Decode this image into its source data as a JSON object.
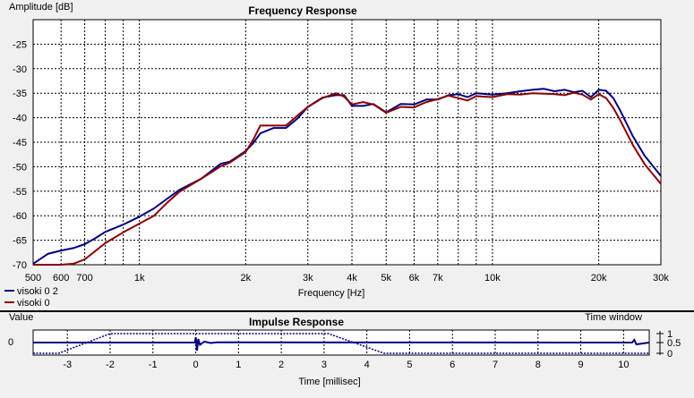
{
  "chart_data": [
    {
      "type": "line",
      "title": "Frequency Response",
      "xlabel": "Frequency [Hz]",
      "ylabel": "Amplitude [dB]",
      "xscale": "log",
      "xlim": [
        500,
        30000
      ],
      "ylim": [
        -70,
        -20
      ],
      "grid": true,
      "legend_position": "bottom-left",
      "x_ticks": [
        {
          "v": 500,
          "l": "500"
        },
        {
          "v": 600,
          "l": "600"
        },
        {
          "v": 700,
          "l": "700"
        },
        {
          "v": 1000,
          "l": "1k"
        },
        {
          "v": 2000,
          "l": "2k"
        },
        {
          "v": 3000,
          "l": "3k"
        },
        {
          "v": 4000,
          "l": "4k"
        },
        {
          "v": 5000,
          "l": "5k"
        },
        {
          "v": 6000,
          "l": "6k"
        },
        {
          "v": 7000,
          "l": "7k"
        },
        {
          "v": 10000,
          "l": "10k"
        },
        {
          "v": 20000,
          "l": "20k"
        },
        {
          "v": 30000,
          "l": "30k"
        }
      ],
      "x_minor": [
        800,
        900,
        8000,
        9000
      ],
      "y_ticks": [
        {
          "v": -25,
          "l": "-25"
        },
        {
          "v": -30,
          "l": "-30"
        },
        {
          "v": -35,
          "l": "-35"
        },
        {
          "v": -40,
          "l": "-40"
        },
        {
          "v": -45,
          "l": "-45"
        },
        {
          "v": -50,
          "l": "-50"
        },
        {
          "v": -55,
          "l": "-55"
        },
        {
          "v": -60,
          "l": "-60"
        },
        {
          "v": -65,
          "l": "-65"
        },
        {
          "v": -70,
          "l": "-70"
        }
      ],
      "series": [
        {
          "name": "visoki 0 2",
          "color": "#000080",
          "x": [
            500,
            550,
            600,
            650,
            700,
            750,
            800,
            900,
            1000,
            1100,
            1200,
            1300,
            1500,
            1700,
            1800,
            2000,
            2100,
            2200,
            2400,
            2600,
            2800,
            3000,
            3300,
            3600,
            3800,
            4000,
            4300,
            4600,
            5000,
            5500,
            6000,
            6500,
            7000,
            7500,
            8000,
            8500,
            9000,
            10000,
            11000,
            12000,
            13000,
            14000,
            15000,
            16000,
            17000,
            18000,
            19000,
            20000,
            21000,
            22000,
            23000,
            25000,
            27000,
            30000
          ],
          "y": [
            -69.8,
            -67.8,
            -67.1,
            -66.6,
            -65.8,
            -64.6,
            -63.3,
            -61.8,
            -60.2,
            -58.5,
            -56.5,
            -54.7,
            -52.4,
            -49.4,
            -49.0,
            -46.8,
            -45.2,
            -43.2,
            -42.1,
            -42.1,
            -40.2,
            -37.8,
            -35.9,
            -35.4,
            -35.4,
            -37.6,
            -37.6,
            -37.2,
            -38.9,
            -37.2,
            -37.3,
            -36.3,
            -36.3,
            -35.4,
            -35.2,
            -35.8,
            -35.0,
            -35.3,
            -35.0,
            -34.6,
            -34.3,
            -34.1,
            -34.6,
            -34.3,
            -34.8,
            -34.5,
            -35.8,
            -34.3,
            -34.5,
            -36.0,
            -38.5,
            -43.8,
            -47.8,
            -51.9
          ]
        },
        {
          "name": "visoki 0",
          "color": "#8b0000",
          "x": [
            500,
            600,
            650,
            700,
            750,
            800,
            900,
            1000,
            1100,
            1200,
            1300,
            1500,
            1700,
            1800,
            2000,
            2100,
            2200,
            2400,
            2600,
            2800,
            3000,
            3300,
            3600,
            3800,
            4000,
            4300,
            4600,
            5000,
            5500,
            6000,
            6500,
            7000,
            7500,
            8000,
            8500,
            9000,
            10000,
            11000,
            12000,
            13000,
            14000,
            15000,
            16000,
            17000,
            18000,
            19000,
            20000,
            21000,
            22000,
            23000,
            25000,
            27000,
            30000
          ],
          "y": [
            -70.0,
            -70.0,
            -69.8,
            -68.9,
            -67.2,
            -65.6,
            -63.4,
            -61.6,
            -60.0,
            -57.3,
            -55.1,
            -52.4,
            -49.9,
            -49.2,
            -47.0,
            -44.5,
            -41.6,
            -41.6,
            -41.6,
            -39.6,
            -37.8,
            -36.0,
            -35.0,
            -35.7,
            -37.3,
            -36.8,
            -37.3,
            -39.0,
            -37.8,
            -37.9,
            -36.8,
            -36.2,
            -35.5,
            -36.0,
            -36.5,
            -35.6,
            -35.8,
            -35.2,
            -35.3,
            -35.0,
            -35.1,
            -35.2,
            -35.4,
            -34.9,
            -35.3,
            -36.3,
            -35.2,
            -36.0,
            -38.0,
            -40.5,
            -45.6,
            -49.5,
            -53.5
          ]
        }
      ]
    },
    {
      "type": "line",
      "title": "Impulse Response",
      "xlabel": "Time [millisec]",
      "ylabel": "Value",
      "xlim": [
        -3.8,
        10.6
      ],
      "x_ticks": [
        -3,
        -2,
        -1,
        0,
        1,
        2,
        3,
        4,
        5,
        6,
        7,
        8,
        9,
        10
      ],
      "left_tick_label": "0",
      "right_axis_label": "Time window",
      "right_ticks": [
        "1",
        "0.5",
        "0"
      ],
      "series": [
        {
          "name": "time window",
          "style": "dotted",
          "color": "#000080",
          "x": [
            -3.8,
            -3.2,
            -2.0,
            3.1,
            4.4,
            10.6
          ],
          "y": [
            0,
            0,
            1,
            1,
            0,
            0
          ]
        },
        {
          "name": "impulse",
          "color": "#000080",
          "x": [
            -3.8,
            -0.02,
            0.0,
            0.03,
            0.06,
            0.1,
            0.2,
            0.35,
            0.5,
            10.2,
            10.25,
            10.3,
            10.6
          ],
          "y": [
            0,
            0,
            0.6,
            -0.9,
            0.4,
            -0.25,
            0.1,
            -0.05,
            0.02,
            0,
            0.3,
            -0.2,
            0
          ]
        }
      ]
    }
  ]
}
